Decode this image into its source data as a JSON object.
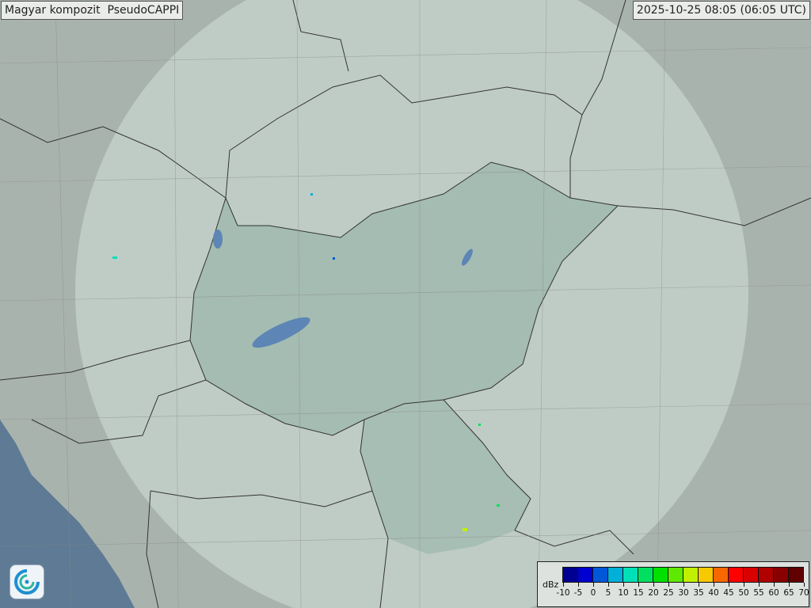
{
  "header": {
    "title": "Magyar kompozit  PseudoCAPPI",
    "timestamp": "2025-10-25 08:05 (06:05 UTC)"
  },
  "legend": {
    "unit": "dBz",
    "labels": [
      "-10",
      "-5",
      "0",
      "5",
      "10",
      "15",
      "20",
      "25",
      "30",
      "35",
      "40",
      "45",
      "50",
      "55",
      "60",
      "65",
      "70"
    ],
    "colors": [
      "#000090",
      "#0000d0",
      "#0058d8",
      "#00b0d8",
      "#00e0b8",
      "#00e060",
      "#00e000",
      "#60e800",
      "#c0f000",
      "#f8c800",
      "#f86800",
      "#ff0000",
      "#d80000",
      "#b00000",
      "#880000",
      "#600000"
    ]
  },
  "logo": {
    "icon": "swirl-logo-icon"
  },
  "map": {
    "background_color": "#a9b3ad",
    "coverage_color": "#c7d4cd",
    "hungary_color": "#9fb9ad",
    "sea_color": "#5e7a95",
    "lake_color": "#5d85b5"
  }
}
